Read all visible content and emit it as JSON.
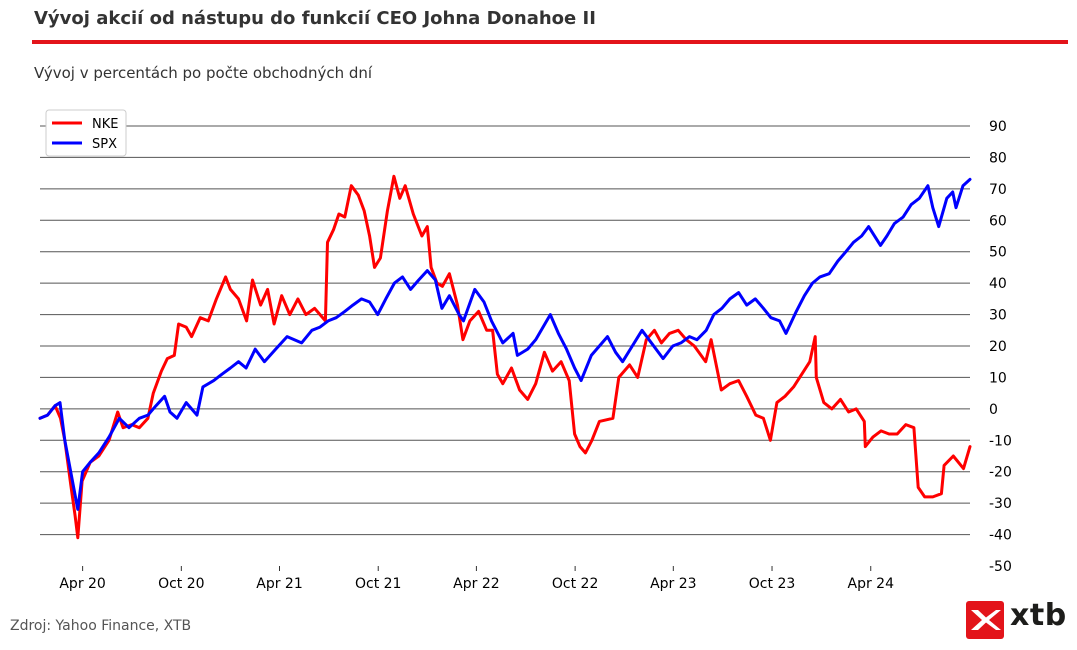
{
  "header": {
    "title": "Vývoj akcií od nástupu do funkcií CEO Johna Donahoe II",
    "subtitle": "Vývoj v percentách po počte obchodných dní"
  },
  "footer": {
    "source": "Zdroj: Yahoo Finance, XTB",
    "logo_text": "xtb"
  },
  "colors": {
    "accent": "#e3141a",
    "nke": "#ff0000",
    "spx": "#0000ff",
    "grid": "#555555"
  },
  "chart_data": {
    "type": "line",
    "title": "",
    "xlabel": "",
    "ylabel": "",
    "ylim": [
      -50,
      90
    ],
    "y_ticks": [
      90,
      80,
      70,
      60,
      50,
      40,
      30,
      20,
      10,
      0,
      -10,
      -20,
      -30,
      -40,
      -50
    ],
    "y_axis_side": "right",
    "grid": "horizontal",
    "legend": {
      "position": "top-left",
      "entries": [
        "NKE",
        "SPX"
      ]
    },
    "x_ticks": [
      {
        "label": "Apr 20",
        "date": "2020-04-01"
      },
      {
        "label": "Oct 20",
        "date": "2020-10-01"
      },
      {
        "label": "Apr 21",
        "date": "2021-04-01"
      },
      {
        "label": "Oct 21",
        "date": "2021-10-01"
      },
      {
        "label": "Apr 22",
        "date": "2022-04-01"
      },
      {
        "label": "Oct 22",
        "date": "2022-10-01"
      },
      {
        "label": "Apr 23",
        "date": "2023-04-01"
      },
      {
        "label": "Oct 23",
        "date": "2023-10-01"
      },
      {
        "label": "Apr 24",
        "date": "2024-04-01"
      }
    ],
    "x_range": [
      "2020-01-13",
      "2024-10-02"
    ],
    "series": [
      {
        "name": "NKE",
        "color": "#ff0000",
        "points": [
          [
            "2020-01-13",
            -3
          ],
          [
            "2020-01-27",
            -2
          ],
          [
            "2020-02-10",
            1
          ],
          [
            "2020-02-20",
            -3
          ],
          [
            "2020-02-28",
            -10
          ],
          [
            "2020-03-10",
            -24
          ],
          [
            "2020-03-18",
            -34
          ],
          [
            "2020-03-23",
            -41
          ],
          [
            "2020-03-31",
            -23
          ],
          [
            "2020-04-15",
            -17
          ],
          [
            "2020-05-01",
            -15
          ],
          [
            "2020-05-20",
            -10
          ],
          [
            "2020-06-05",
            -1
          ],
          [
            "2020-06-15",
            -6
          ],
          [
            "2020-07-01",
            -5
          ],
          [
            "2020-07-15",
            -6
          ],
          [
            "2020-07-31",
            -3
          ],
          [
            "2020-08-10",
            5
          ],
          [
            "2020-08-25",
            12
          ],
          [
            "2020-09-05",
            16
          ],
          [
            "2020-09-18",
            17
          ],
          [
            "2020-09-26",
            27
          ],
          [
            "2020-10-10",
            26
          ],
          [
            "2020-10-20",
            23
          ],
          [
            "2020-11-05",
            29
          ],
          [
            "2020-11-20",
            28
          ],
          [
            "2020-12-05",
            35
          ],
          [
            "2020-12-22",
            42
          ],
          [
            "2020-12-31",
            38
          ],
          [
            "2021-01-15",
            35
          ],
          [
            "2021-01-30",
            28
          ],
          [
            "2021-02-10",
            41
          ],
          [
            "2021-02-25",
            33
          ],
          [
            "2021-03-10",
            38
          ],
          [
            "2021-03-22",
            27
          ],
          [
            "2021-04-05",
            36
          ],
          [
            "2021-04-20",
            30
          ],
          [
            "2021-05-05",
            35
          ],
          [
            "2021-05-20",
            30
          ],
          [
            "2021-06-05",
            32
          ],
          [
            "2021-06-25",
            28
          ],
          [
            "2021-06-29",
            53
          ],
          [
            "2021-07-10",
            57
          ],
          [
            "2021-07-20",
            62
          ],
          [
            "2021-07-31",
            61
          ],
          [
            "2021-08-12",
            71
          ],
          [
            "2021-08-25",
            68
          ],
          [
            "2021-09-05",
            63
          ],
          [
            "2021-09-15",
            55
          ],
          [
            "2021-09-24",
            45
          ],
          [
            "2021-10-05",
            48
          ],
          [
            "2021-10-18",
            63
          ],
          [
            "2021-10-30",
            74
          ],
          [
            "2021-11-10",
            67
          ],
          [
            "2021-11-20",
            71
          ],
          [
            "2021-12-05",
            62
          ],
          [
            "2021-12-21",
            55
          ],
          [
            "2021-12-31",
            58
          ],
          [
            "2022-01-07",
            45
          ],
          [
            "2022-01-18",
            40
          ],
          [
            "2022-01-28",
            39
          ],
          [
            "2022-02-10",
            43
          ],
          [
            "2022-02-25",
            33
          ],
          [
            "2022-03-07",
            22
          ],
          [
            "2022-03-20",
            28
          ],
          [
            "2022-04-05",
            31
          ],
          [
            "2022-04-20",
            25
          ],
          [
            "2022-05-01",
            25
          ],
          [
            "2022-05-10",
            11
          ],
          [
            "2022-05-20",
            8
          ],
          [
            "2022-06-05",
            13
          ],
          [
            "2022-06-20",
            6
          ],
          [
            "2022-07-05",
            3
          ],
          [
            "2022-07-20",
            8
          ],
          [
            "2022-08-05",
            18
          ],
          [
            "2022-08-20",
            12
          ],
          [
            "2022-09-05",
            15
          ],
          [
            "2022-09-20",
            9
          ],
          [
            "2022-09-30",
            -8
          ],
          [
            "2022-10-10",
            -12
          ],
          [
            "2022-10-20",
            -14
          ],
          [
            "2022-11-01",
            -10
          ],
          [
            "2022-11-15",
            -4
          ],
          [
            "2022-12-10",
            -3
          ],
          [
            "2022-12-21",
            10
          ],
          [
            "2023-01-10",
            14
          ],
          [
            "2023-01-25",
            10
          ],
          [
            "2023-02-10",
            22
          ],
          [
            "2023-02-25",
            25
          ],
          [
            "2023-03-10",
            21
          ],
          [
            "2023-03-25",
            24
          ],
          [
            "2023-04-10",
            25
          ],
          [
            "2023-04-25",
            22
          ],
          [
            "2023-05-10",
            20
          ],
          [
            "2023-05-31",
            15
          ],
          [
            "2023-06-10",
            22
          ],
          [
            "2023-06-29",
            6
          ],
          [
            "2023-07-15",
            8
          ],
          [
            "2023-07-31",
            9
          ],
          [
            "2023-08-15",
            4
          ],
          [
            "2023-09-01",
            -2
          ],
          [
            "2023-09-15",
            -3
          ],
          [
            "2023-09-28",
            -10
          ],
          [
            "2023-10-10",
            2
          ],
          [
            "2023-10-25",
            4
          ],
          [
            "2023-11-10",
            7
          ],
          [
            "2023-11-25",
            11
          ],
          [
            "2023-12-10",
            15
          ],
          [
            "2023-12-20",
            23
          ],
          [
            "2023-12-22",
            10
          ],
          [
            "2024-01-05",
            2
          ],
          [
            "2024-01-20",
            0
          ],
          [
            "2024-02-05",
            3
          ],
          [
            "2024-02-20",
            -1
          ],
          [
            "2024-03-05",
            0
          ],
          [
            "2024-03-20",
            -4
          ],
          [
            "2024-03-22",
            -12
          ],
          [
            "2024-04-05",
            -9
          ],
          [
            "2024-04-20",
            -7
          ],
          [
            "2024-05-05",
            -8
          ],
          [
            "2024-05-20",
            -8
          ],
          [
            "2024-06-05",
            -5
          ],
          [
            "2024-06-20",
            -6
          ],
          [
            "2024-06-28",
            -25
          ],
          [
            "2024-07-10",
            -28
          ],
          [
            "2024-07-25",
            -28
          ],
          [
            "2024-08-10",
            -27
          ],
          [
            "2024-08-15",
            -18
          ],
          [
            "2024-09-01",
            -15
          ],
          [
            "2024-09-20",
            -19
          ],
          [
            "2024-10-02",
            -12
          ]
        ]
      },
      {
        "name": "SPX",
        "color": "#0000ff",
        "points": [
          [
            "2020-01-13",
            -3
          ],
          [
            "2020-01-27",
            -2
          ],
          [
            "2020-02-10",
            1
          ],
          [
            "2020-02-19",
            2
          ],
          [
            "2020-02-28",
            -10
          ],
          [
            "2020-03-10",
            -20
          ],
          [
            "2020-03-23",
            -32
          ],
          [
            "2020-04-01",
            -20
          ],
          [
            "2020-04-15",
            -17
          ],
          [
            "2020-05-01",
            -14
          ],
          [
            "2020-05-20",
            -9
          ],
          [
            "2020-06-08",
            -3
          ],
          [
            "2020-06-26",
            -6
          ],
          [
            "2020-07-15",
            -3
          ],
          [
            "2020-07-31",
            -2
          ],
          [
            "2020-08-15",
            1
          ],
          [
            "2020-08-31",
            4
          ],
          [
            "2020-09-10",
            -1
          ],
          [
            "2020-09-23",
            -3
          ],
          [
            "2020-10-10",
            2
          ],
          [
            "2020-10-30",
            -2
          ],
          [
            "2020-11-10",
            7
          ],
          [
            "2020-11-30",
            9
          ],
          [
            "2020-12-15",
            11
          ],
          [
            "2020-12-31",
            13
          ],
          [
            "2021-01-15",
            15
          ],
          [
            "2021-01-29",
            13
          ],
          [
            "2021-02-15",
            19
          ],
          [
            "2021-03-04",
            15
          ],
          [
            "2021-03-25",
            19
          ],
          [
            "2021-04-15",
            23
          ],
          [
            "2021-05-12",
            21
          ],
          [
            "2021-05-31",
            25
          ],
          [
            "2021-06-15",
            26
          ],
          [
            "2021-06-30",
            28
          ],
          [
            "2021-07-15",
            29
          ],
          [
            "2021-07-31",
            31
          ],
          [
            "2021-08-15",
            33
          ],
          [
            "2021-08-31",
            35
          ],
          [
            "2021-09-15",
            34
          ],
          [
            "2021-09-30",
            30
          ],
          [
            "2021-10-15",
            35
          ],
          [
            "2021-10-31",
            40
          ],
          [
            "2021-11-15",
            42
          ],
          [
            "2021-11-30",
            38
          ],
          [
            "2021-12-15",
            41
          ],
          [
            "2021-12-31",
            44
          ],
          [
            "2022-01-15",
            41
          ],
          [
            "2022-01-27",
            32
          ],
          [
            "2022-02-10",
            36
          ],
          [
            "2022-02-28",
            30
          ],
          [
            "2022-03-08",
            28
          ],
          [
            "2022-03-29",
            38
          ],
          [
            "2022-04-15",
            34
          ],
          [
            "2022-04-29",
            28
          ],
          [
            "2022-05-20",
            21
          ],
          [
            "2022-06-08",
            24
          ],
          [
            "2022-06-16",
            17
          ],
          [
            "2022-07-05",
            19
          ],
          [
            "2022-07-20",
            22
          ],
          [
            "2022-08-16",
            30
          ],
          [
            "2022-08-31",
            24
          ],
          [
            "2022-09-15",
            19
          ],
          [
            "2022-09-30",
            13
          ],
          [
            "2022-10-12",
            9
          ],
          [
            "2022-10-31",
            17
          ],
          [
            "2022-11-15",
            20
          ],
          [
            "2022-11-30",
            23
          ],
          [
            "2022-12-15",
            18
          ],
          [
            "2022-12-28",
            15
          ],
          [
            "2023-01-15",
            20
          ],
          [
            "2023-02-02",
            25
          ],
          [
            "2023-02-15",
            22
          ],
          [
            "2023-03-13",
            16
          ],
          [
            "2023-03-31",
            20
          ],
          [
            "2023-04-15",
            21
          ],
          [
            "2023-05-01",
            23
          ],
          [
            "2023-05-15",
            22
          ],
          [
            "2023-06-01",
            25
          ],
          [
            "2023-06-15",
            30
          ],
          [
            "2023-06-30",
            32
          ],
          [
            "2023-07-15",
            35
          ],
          [
            "2023-07-31",
            37
          ],
          [
            "2023-08-15",
            33
          ],
          [
            "2023-08-31",
            35
          ],
          [
            "2023-09-15",
            32
          ],
          [
            "2023-09-29",
            29
          ],
          [
            "2023-10-15",
            28
          ],
          [
            "2023-10-27",
            24
          ],
          [
            "2023-11-15",
            31
          ],
          [
            "2023-11-30",
            36
          ],
          [
            "2023-12-15",
            40
          ],
          [
            "2023-12-29",
            42
          ],
          [
            "2024-01-15",
            43
          ],
          [
            "2024-01-31",
            47
          ],
          [
            "2024-02-15",
            50
          ],
          [
            "2024-02-29",
            53
          ],
          [
            "2024-03-15",
            55
          ],
          [
            "2024-03-28",
            58
          ],
          [
            "2024-04-19",
            52
          ],
          [
            "2024-05-01",
            55
          ],
          [
            "2024-05-15",
            59
          ],
          [
            "2024-05-31",
            61
          ],
          [
            "2024-06-15",
            65
          ],
          [
            "2024-06-30",
            67
          ],
          [
            "2024-07-16",
            71
          ],
          [
            "2024-07-25",
            64
          ],
          [
            "2024-08-05",
            58
          ],
          [
            "2024-08-20",
            67
          ],
          [
            "2024-08-31",
            69
          ],
          [
            "2024-09-06",
            64
          ],
          [
            "2024-09-19",
            71
          ],
          [
            "2024-10-02",
            73
          ]
        ]
      }
    ]
  }
}
